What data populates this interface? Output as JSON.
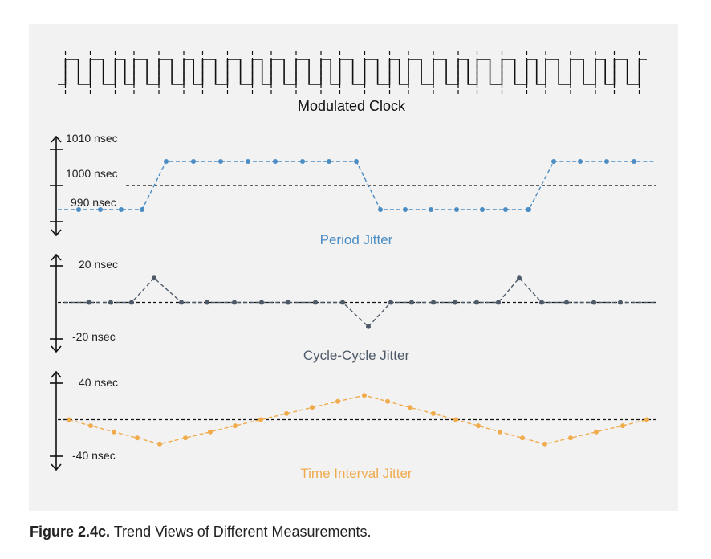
{
  "caption": {
    "label": "Figure 2.4c.",
    "text": "Trend Views of Different Measurements."
  },
  "colors": {
    "panel": "#f2f2f2",
    "period": "#4a8cc4",
    "cycle": "#4e5a68",
    "tie": "#f0ab4c",
    "ink": "#111111"
  },
  "chart_data": [
    {
      "type": "line",
      "title": "Modulated Clock",
      "series": []
    },
    {
      "type": "line",
      "title": "Period Jitter",
      "unit": "nsec",
      "tick_labels": [
        "1010 nsec",
        "1000 nsec",
        "990 nsec"
      ],
      "ylim": [
        985,
        1015
      ],
      "reference": 1000,
      "series": [
        {
          "values": [
            990,
            990,
            990,
            990,
            1010,
            1010,
            1010,
            1010,
            1010,
            1010,
            1010,
            1010,
            990,
            990,
            990,
            990,
            990,
            990,
            990,
            990,
            1010,
            1010,
            1010,
            1010
          ]
        }
      ]
    },
    {
      "type": "line",
      "title": "Cycle-Cycle Jitter",
      "unit": "nsec",
      "tick_labels": [
        "20 nsec",
        "-20 nsec"
      ],
      "ylim": [
        -30,
        30
      ],
      "reference": 0,
      "series": [
        {
          "values": [
            0,
            0,
            0,
            20,
            0,
            0,
            0,
            0,
            0,
            0,
            0,
            -20,
            0,
            0,
            0,
            0,
            0,
            0,
            20,
            0,
            0,
            0,
            0
          ]
        }
      ]
    },
    {
      "type": "line",
      "title": "Time Interval Jitter",
      "unit": "nsec",
      "tick_labels": [
        "40 nsec",
        "-40 nsec"
      ],
      "ylim": [
        -60,
        60
      ],
      "reference": 0,
      "series": [
        {
          "values": [
            0,
            -10,
            -20,
            -30,
            -40,
            -30,
            -20,
            -10,
            0,
            10,
            20,
            30,
            40,
            30,
            20,
            10,
            0,
            -10,
            -20,
            -30,
            -40,
            -30,
            -20,
            -10,
            0
          ]
        }
      ]
    }
  ]
}
